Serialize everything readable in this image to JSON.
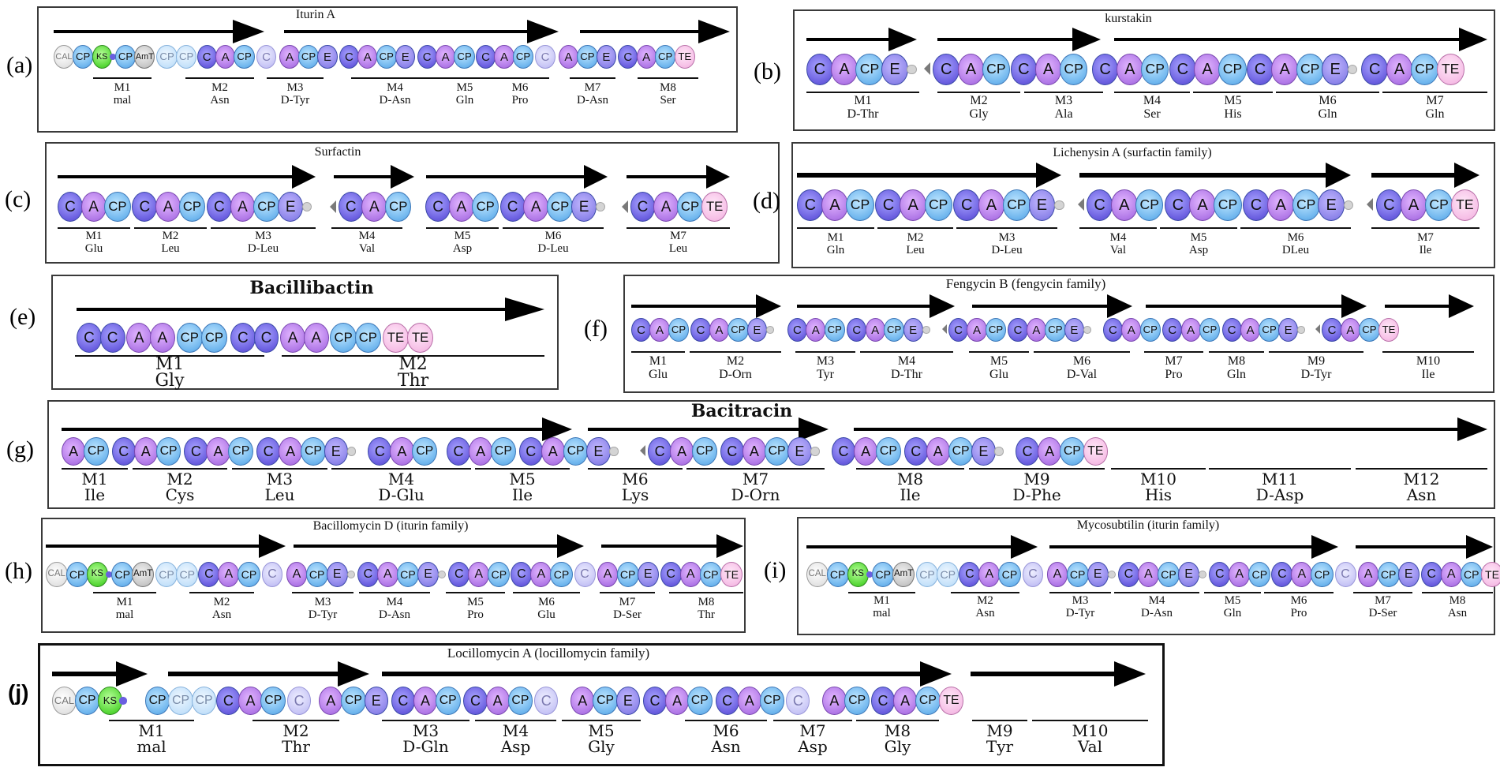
{
  "colors": {
    "C": "#6b5fe0",
    "A": "#b27ae8",
    "CP": "#6fb6ee",
    "E": "#8e86ea",
    "TE": "#f6bfe6",
    "KS": "#58d838",
    "CAL": "#e4e4e4",
    "AmT": "#c8c8c8",
    "arrow": "#000000"
  },
  "panels": [
    {
      "id": "a",
      "letter": "(a)",
      "title": "Iturin A",
      "modules": [
        {
          "name": "M1",
          "residue": "mal"
        },
        {
          "name": "M2",
          "residue": "Asn"
        },
        {
          "name": "M3",
          "residue": "D-Tyr"
        },
        {
          "name": "M4",
          "residue": "D-Asn"
        },
        {
          "name": "M5",
          "residue": "Gln"
        },
        {
          "name": "M6",
          "residue": "Pro"
        },
        {
          "name": "M7",
          "residue": "D-Asn"
        },
        {
          "name": "M8",
          "residue": "Ser"
        }
      ]
    },
    {
      "id": "b",
      "letter": "(b)",
      "title": "kurstakin",
      "modules": [
        {
          "name": "M1",
          "residue": "D-Thr"
        },
        {
          "name": "M2",
          "residue": "Gly"
        },
        {
          "name": "M3",
          "residue": "Ala"
        },
        {
          "name": "M4",
          "residue": "Ser"
        },
        {
          "name": "M5",
          "residue": "His"
        },
        {
          "name": "M6",
          "residue": "Gln"
        },
        {
          "name": "M7",
          "residue": "Gln"
        }
      ]
    },
    {
      "id": "c",
      "letter": "(c)",
      "title": "Surfactin",
      "modules": [
        {
          "name": "M1",
          "residue": "Glu"
        },
        {
          "name": "M2",
          "residue": "Leu"
        },
        {
          "name": "M3",
          "residue": "D-Leu"
        },
        {
          "name": "M4",
          "residue": "Val"
        },
        {
          "name": "M5",
          "residue": "Asp"
        },
        {
          "name": "M6",
          "residue": "D-Leu"
        },
        {
          "name": "M7",
          "residue": "Leu"
        }
      ]
    },
    {
      "id": "d",
      "letter": "(d)",
      "title": "Lichenysin A (surfactin family)",
      "modules": [
        {
          "name": "M1",
          "residue": "Gln"
        },
        {
          "name": "M2",
          "residue": "Leu"
        },
        {
          "name": "M3",
          "residue": "D-Leu"
        },
        {
          "name": "M4",
          "residue": "Val"
        },
        {
          "name": "M5",
          "residue": "Asp"
        },
        {
          "name": "M6",
          "residue": "DLeu"
        },
        {
          "name": "M7",
          "residue": "Ile"
        }
      ]
    },
    {
      "id": "e",
      "letter": "(e)",
      "title": "Bacillibactin",
      "modules": [
        {
          "name": "M1",
          "residue": "Gly"
        },
        {
          "name": "M2",
          "residue": "Thr"
        }
      ]
    },
    {
      "id": "f",
      "letter": "(f)",
      "title": "Fengycin B (fengycin family)",
      "modules": [
        {
          "name": "M1",
          "residue": "Glu"
        },
        {
          "name": "M2",
          "residue": "D-Orn"
        },
        {
          "name": "M3",
          "residue": "Tyr"
        },
        {
          "name": "M4",
          "residue": "D-Thr"
        },
        {
          "name": "M5",
          "residue": "Glu"
        },
        {
          "name": "M6",
          "residue": "D-Val"
        },
        {
          "name": "M7",
          "residue": "Pro"
        },
        {
          "name": "M8",
          "residue": "Gln"
        },
        {
          "name": "M9",
          "residue": "D-Tyr"
        },
        {
          "name": "M10",
          "residue": "Ile"
        }
      ]
    },
    {
      "id": "g",
      "letter": "(g)",
      "title": "Bacitracin",
      "modules": [
        {
          "name": "M1",
          "residue": "Ile"
        },
        {
          "name": "M2",
          "residue": "Cys"
        },
        {
          "name": "M3",
          "residue": "Leu"
        },
        {
          "name": "M4",
          "residue": "D-Glu"
        },
        {
          "name": "M5",
          "residue": "Ile"
        },
        {
          "name": "M6",
          "residue": "Lys"
        },
        {
          "name": "M7",
          "residue": "D-Orn"
        },
        {
          "name": "M8",
          "residue": "Ile"
        },
        {
          "name": "M9",
          "residue": "D-Phe"
        },
        {
          "name": "M10",
          "residue": "His"
        },
        {
          "name": "M11",
          "residue": "D-Asp"
        },
        {
          "name": "M12",
          "residue": "Asn"
        }
      ]
    },
    {
      "id": "h",
      "letter": "(h)",
      "title": "Bacillomycin D (iturin family)",
      "modules": [
        {
          "name": "M1",
          "residue": "mal"
        },
        {
          "name": "M2",
          "residue": "Asn"
        },
        {
          "name": "M3",
          "residue": "D-Tyr"
        },
        {
          "name": "M4",
          "residue": "D-Asn"
        },
        {
          "name": "M5",
          "residue": "Pro"
        },
        {
          "name": "M6",
          "residue": "Glu"
        },
        {
          "name": "M7",
          "residue": "D-Ser"
        },
        {
          "name": "M8",
          "residue": "Thr"
        }
      ]
    },
    {
      "id": "i",
      "letter": "(i)",
      "title": "Mycosubtilin (iturin family)",
      "modules": [
        {
          "name": "M1",
          "residue": "mal"
        },
        {
          "name": "M2",
          "residue": "Asn"
        },
        {
          "name": "M3",
          "residue": "D-Tyr"
        },
        {
          "name": "M4",
          "residue": "D-Asn"
        },
        {
          "name": "M5",
          "residue": "Gln"
        },
        {
          "name": "M6",
          "residue": "Pro"
        },
        {
          "name": "M7",
          "residue": "D-Ser"
        },
        {
          "name": "M8",
          "residue": "Asn"
        }
      ]
    },
    {
      "id": "j",
      "letter": "(j)",
      "title": "Locillomycin A (locillomycin family)",
      "modules": [
        {
          "name": "M1",
          "residue": "mal"
        },
        {
          "name": "M2",
          "residue": "Thr"
        },
        {
          "name": "M3",
          "residue": "D-Gln"
        },
        {
          "name": "M4",
          "residue": "Asp"
        },
        {
          "name": "M5",
          "residue": "Gly"
        },
        {
          "name": "M6",
          "residue": "Asn"
        },
        {
          "name": "M7",
          "residue": "Asp"
        },
        {
          "name": "M8",
          "residue": "Gly"
        },
        {
          "name": "M9",
          "residue": "Tyr"
        },
        {
          "name": "M10",
          "residue": "Val"
        }
      ]
    }
  ]
}
